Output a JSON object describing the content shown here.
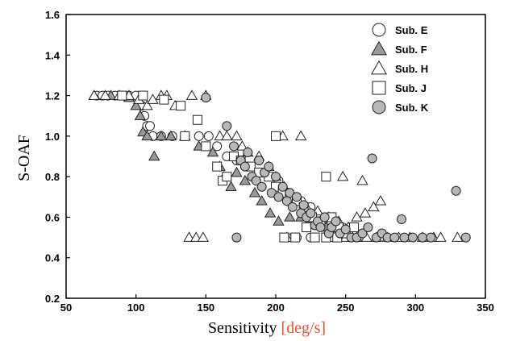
{
  "chart_data": {
    "type": "scatter",
    "title": "",
    "xlabel": "Sensitivity",
    "xlabel_unit": "[deg/s]",
    "ylabel": "S-OAF",
    "xlim": [
      50,
      350
    ],
    "ylim": [
      0.2,
      1.6
    ],
    "x_ticks": [
      "50",
      "100",
      "150",
      "200",
      "250",
      "300",
      "350"
    ],
    "y_ticks": [
      "0.2",
      "0.4",
      "0.6",
      "0.8",
      "1.0",
      "1.2",
      "1.4",
      "1.6"
    ],
    "grid": false,
    "legend_position": "top-right",
    "series": [
      {
        "name": "Sub. E",
        "marker": "circle-open",
        "points": [
          [
            72,
            1.2
          ],
          [
            76,
            1.2
          ],
          [
            80,
            1.2
          ],
          [
            85,
            1.2
          ],
          [
            90,
            1.2
          ],
          [
            95,
            1.2
          ],
          [
            100,
            1.2
          ],
          [
            104,
            1.15
          ],
          [
            106,
            1.1
          ],
          [
            108,
            1.05
          ],
          [
            110,
            1.05
          ],
          [
            112,
            1.0
          ],
          [
            118,
            1.0
          ],
          [
            126,
            1.0
          ],
          [
            135,
            1.0
          ],
          [
            145,
            1.0
          ],
          [
            152,
            1.0
          ],
          [
            158,
            0.95
          ],
          [
            165,
            0.9
          ],
          [
            172,
            0.88
          ],
          [
            180,
            0.85
          ],
          [
            188,
            0.82
          ],
          [
            195,
            0.8
          ],
          [
            202,
            0.78
          ],
          [
            210,
            0.72
          ],
          [
            218,
            0.68
          ],
          [
            225,
            0.65
          ],
          [
            232,
            0.6
          ],
          [
            240,
            0.57
          ],
          [
            248,
            0.55
          ],
          [
            208,
            0.5
          ],
          [
            215,
            0.5
          ],
          [
            225,
            0.5
          ]
        ]
      },
      {
        "name": "Sub. F",
        "marker": "triangle-filled",
        "points": [
          [
            70,
            1.2
          ],
          [
            82,
            1.2
          ],
          [
            95,
            1.19
          ],
          [
            100,
            1.15
          ],
          [
            103,
            1.1
          ],
          [
            105,
            1.02
          ],
          [
            108,
            1.0
          ],
          [
            113,
            0.9
          ],
          [
            118,
            1.0
          ],
          [
            125,
            1.0
          ],
          [
            135,
            1.0
          ],
          [
            145,
            0.95
          ],
          [
            155,
            0.92
          ],
          [
            160,
            0.85
          ],
          [
            163,
            0.8
          ],
          [
            168,
            0.75
          ],
          [
            172,
            0.82
          ],
          [
            178,
            0.78
          ],
          [
            185,
            0.72
          ],
          [
            190,
            0.68
          ],
          [
            196,
            0.62
          ],
          [
            202,
            0.58
          ],
          [
            210,
            0.6
          ],
          [
            218,
            0.6
          ],
          [
            224,
            0.58
          ],
          [
            230,
            0.56
          ],
          [
            236,
            0.55
          ],
          [
            242,
            0.52
          ],
          [
            248,
            0.52
          ],
          [
            255,
            0.5
          ]
        ]
      },
      {
        "name": "Sub. H",
        "marker": "triangle-open",
        "points": [
          [
            70,
            1.2
          ],
          [
            78,
            1.2
          ],
          [
            88,
            1.2
          ],
          [
            95,
            1.2
          ],
          [
            102,
            1.18
          ],
          [
            108,
            1.15
          ],
          [
            112,
            1.18
          ],
          [
            118,
            1.2
          ],
          [
            122,
            1.2
          ],
          [
            128,
            1.15
          ],
          [
            140,
            1.2
          ],
          [
            150,
            1.2
          ],
          [
            160,
            1.0
          ],
          [
            165,
            1.0
          ],
          [
            172,
            1.0
          ],
          [
            176,
            0.95
          ],
          [
            180,
            0.92
          ],
          [
            188,
            0.9
          ],
          [
            195,
            0.85
          ],
          [
            200,
            0.8
          ],
          [
            206,
            0.75
          ],
          [
            210,
            0.7
          ],
          [
            216,
            0.68
          ],
          [
            222,
            0.65
          ],
          [
            230,
            0.63
          ],
          [
            238,
            0.6
          ],
          [
            245,
            0.58
          ],
          [
            252,
            0.55
          ],
          [
            258,
            0.6
          ],
          [
            264,
            0.62
          ],
          [
            270,
            0.65
          ],
          [
            275,
            0.68
          ],
          [
            248,
            0.8
          ],
          [
            262,
            0.78
          ],
          [
            218,
            1.0
          ],
          [
            205,
            1.0
          ],
          [
            138,
            0.5
          ],
          [
            143,
            0.5
          ],
          [
            148,
            0.5
          ],
          [
            208,
            0.5
          ],
          [
            240,
            0.5
          ],
          [
            250,
            0.5
          ],
          [
            258,
            0.5
          ],
          [
            265,
            0.5
          ],
          [
            272,
            0.5
          ],
          [
            280,
            0.5
          ],
          [
            288,
            0.5
          ],
          [
            296,
            0.5
          ],
          [
            305,
            0.5
          ],
          [
            313,
            0.5
          ],
          [
            318,
            0.5
          ],
          [
            330,
            0.5
          ]
        ]
      },
      {
        "name": "Sub. J",
        "marker": "square-open",
        "points": [
          [
            90,
            1.2
          ],
          [
            105,
            1.2
          ],
          [
            120,
            1.18
          ],
          [
            132,
            1.15
          ],
          [
            135,
            1.0
          ],
          [
            144,
            1.08
          ],
          [
            150,
            0.95
          ],
          [
            158,
            0.85
          ],
          [
            162,
            0.78
          ],
          [
            165,
            0.8
          ],
          [
            170,
            0.9
          ],
          [
            175,
            0.88
          ],
          [
            182,
            0.85
          ],
          [
            188,
            0.82
          ],
          [
            195,
            0.8
          ],
          [
            200,
            0.75
          ],
          [
            205,
            0.72
          ],
          [
            210,
            0.7
          ],
          [
            215,
            0.68
          ],
          [
            220,
            0.65
          ],
          [
            226,
            0.6
          ],
          [
            232,
            0.58
          ],
          [
            236,
            0.8
          ],
          [
            240,
            0.6
          ],
          [
            245,
            0.55
          ],
          [
            200,
            1.0
          ],
          [
            206,
            0.5
          ],
          [
            214,
            0.5
          ],
          [
            222,
            0.55
          ],
          [
            228,
            0.5
          ],
          [
            236,
            0.5
          ],
          [
            244,
            0.5
          ],
          [
            250,
            0.52
          ],
          [
            256,
            0.55
          ]
        ]
      },
      {
        "name": "Sub. K",
        "marker": "circle-filled",
        "points": [
          [
            150,
            1.19
          ],
          [
            165,
            1.05
          ],
          [
            170,
            0.95
          ],
          [
            172,
            0.5
          ],
          [
            175,
            0.88
          ],
          [
            178,
            0.85
          ],
          [
            180,
            0.92
          ],
          [
            183,
            0.8
          ],
          [
            186,
            0.78
          ],
          [
            188,
            0.88
          ],
          [
            190,
            0.75
          ],
          [
            192,
            0.82
          ],
          [
            195,
            0.85
          ],
          [
            197,
            0.72
          ],
          [
            200,
            0.8
          ],
          [
            202,
            0.7
          ],
          [
            205,
            0.75
          ],
          [
            208,
            0.68
          ],
          [
            210,
            0.72
          ],
          [
            212,
            0.65
          ],
          [
            215,
            0.7
          ],
          [
            218,
            0.62
          ],
          [
            220,
            0.66
          ],
          [
            222,
            0.6
          ],
          [
            225,
            0.62
          ],
          [
            228,
            0.56
          ],
          [
            230,
            0.58
          ],
          [
            232,
            0.55
          ],
          [
            235,
            0.6
          ],
          [
            238,
            0.52
          ],
          [
            240,
            0.55
          ],
          [
            243,
            0.58
          ],
          [
            246,
            0.52
          ],
          [
            250,
            0.54
          ],
          [
            254,
            0.5
          ],
          [
            258,
            0.5
          ],
          [
            262,
            0.52
          ],
          [
            266,
            0.55
          ],
          [
            269,
            0.89
          ],
          [
            272,
            0.5
          ],
          [
            276,
            0.52
          ],
          [
            280,
            0.5
          ],
          [
            285,
            0.5
          ],
          [
            290,
            0.59
          ],
          [
            292,
            0.5
          ],
          [
            298,
            0.5
          ],
          [
            305,
            0.5
          ],
          [
            311,
            0.5
          ],
          [
            329,
            0.73
          ],
          [
            336,
            0.5
          ]
        ]
      }
    ]
  }
}
